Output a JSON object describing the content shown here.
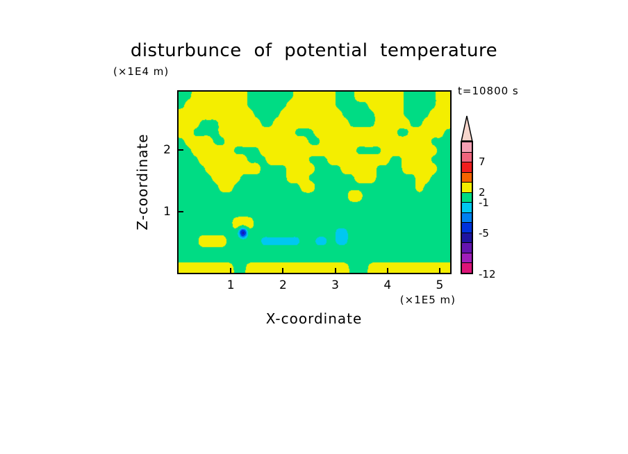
{
  "title": "disturbunce of potential temperature",
  "annotations": {
    "z_axis_unit": "(×1E4 m)",
    "x_axis_unit": "(×1E5 m)",
    "time_label": "t=10800 s"
  },
  "axes": {
    "x": {
      "label": "X-coordinate",
      "ticks": [
        "1",
        "2",
        "3",
        "4",
        "5"
      ],
      "tick_values": [
        1,
        2,
        3,
        4,
        5
      ],
      "range": [
        0,
        5.2
      ]
    },
    "z": {
      "label": "Z-coordinate",
      "ticks": [
        "1",
        "2"
      ],
      "tick_values": [
        1,
        2
      ],
      "range": [
        0,
        2.95
      ]
    }
  },
  "colorbar": {
    "arrow_color": "#F7D6CC",
    "segment_colors": [
      "#F5A0B4",
      "#F0647D",
      "#F01E1E",
      "#F56400",
      "#F4EE00",
      "#00DC84",
      "#00C8F0",
      "#0080F0",
      "#0032DC",
      "#1E14A0",
      "#6414AF",
      "#A01EB9",
      "#DC1478"
    ],
    "labels": [
      {
        "text": "7",
        "after": 1
      },
      {
        "text": "2",
        "after": 4
      },
      {
        "text": "-1",
        "after": 5
      },
      {
        "text": "-5",
        "after": 8
      },
      {
        "text": "-12",
        "after": 12
      }
    ]
  },
  "chart_data": {
    "type": "heatmap",
    "title": "disturbunce of potential temperature",
    "xlabel": "X-coordinate (×1E5 m)",
    "ylabel": "Z-coordinate (×1E4 m)",
    "time": "t=10800 s",
    "x_range": [
      0,
      5.2
    ],
    "z_range": [
      0,
      2.95
    ],
    "x_ticks": [
      1,
      2,
      3,
      4,
      5
    ],
    "z_ticks": [
      1,
      2
    ],
    "level_boundaries": [
      7,
      2,
      -1,
      -5,
      -12
    ],
    "levels": [
      {
        "min": 2,
        "color": "#F4EE00",
        "name": "yellow"
      },
      {
        "min": -1,
        "color": "#00DC84",
        "name": "green"
      },
      {
        "min": -2.5,
        "color": "#00C8F0",
        "name": "cyan"
      },
      {
        "min": -3.7,
        "color": "#0080F0",
        "name": "sky-blue"
      },
      {
        "min": -5,
        "color": "#0032DC",
        "name": "blue"
      },
      {
        "min": -8,
        "color": "#1E14A0",
        "name": "navy"
      },
      {
        "min": -10,
        "color": "#6414AF",
        "name": "purple"
      },
      {
        "min": -9999,
        "color": "#DC1478",
        "name": "magenta"
      }
    ],
    "char_values": {
      "Y": 4.5,
      "g": 0.5,
      "c": -2,
      "b": -7
    },
    "encode_range": [
      -12,
      12
    ],
    "grid_rows_top_to_bottom": [
      "ggYYYYYYYYgggggggYYYYYYgggYYYYYYYgggggYY",
      "gYYYYYYYYYggggggYYYYYYYgggggYYYYYgggggYY",
      "YYYYYYYYYYYggggYYYYYYYYYgggggYYYYggggYYY",
      "YYYgggYYYYYYggYYYYYYYYYYYggggYYYYYggYYYY",
      "YYggggYYYYYYYYYYYgggYYYYYYYYYYYYggYYYYYg",
      "gYYYYggYYYYYYYYYYYYggYYYYYYYYYYYYYYYYggg",
      "ggYYYYYYggggYYYYYYYYYYYYYYggggYYYYYYYYgg",
      "gggYYYYYYYgggYYYYYYgggYYYYYYYYYggYYYYggg",
      "ggggYYYYYYYYggggYYYYggggYYYYYggggYYYYYgg",
      "gggggYYYYgggggggYYYgggggggYYYggggggYYggg",
      "ggggggYYggggggggggYYgggggggggggggggYgggg",
      "gggggggggggggggggggggggggYYggggggggggggg",
      "gggggggggggggggggggggggggggggggggggggggg",
      "gggggggggggggggggggggggggggggggggggggggg",
      "ggggggggYYYggggggggggggggggggggggggggggg",
      "gggggggggbgggggggggggggccggggggggggggggg",
      "gggYYYYgggggccccccggccgccggggggggggggggg",
      "gggggggggggggggggggggggggggggggggggggggg",
      "gggggggggggggggggggggggggggggggggggggggg",
      "YYYYYYYYggYYYYYYYYYYYYYYYgggYYYYYYYYYYYY"
    ],
    "summary": "Turbulent yellow (>2) patches fill the upper third, uniform green (-1..2) below, a thin yellow band along the bottom, small cyan (<-1) streaks near z~0.5 and a blue spot at x~1.2, z~0.65."
  }
}
